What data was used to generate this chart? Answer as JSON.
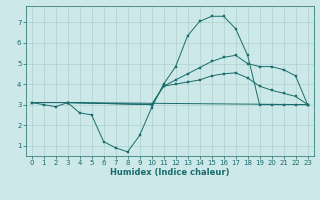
{
  "title": "",
  "xlabel": "Humidex (Indice chaleur)",
  "ylabel": "",
  "bg_color": "#cde8e8",
  "line_color": "#1a6b6b",
  "grid_color": "#afd0d0",
  "xlim": [
    -0.5,
    23.5
  ],
  "ylim": [
    0.5,
    7.8
  ],
  "xticks": [
    0,
    1,
    2,
    3,
    4,
    5,
    6,
    7,
    8,
    9,
    10,
    11,
    12,
    13,
    14,
    15,
    16,
    17,
    18,
    19,
    20,
    21,
    22,
    23
  ],
  "yticks": [
    1,
    2,
    3,
    4,
    5,
    6,
    7
  ],
  "lines": [
    {
      "x": [
        0,
        1,
        2,
        3,
        4,
        5,
        6,
        7,
        8,
        9,
        10,
        11,
        12,
        13,
        14,
        15,
        16,
        17,
        18,
        19,
        20,
        21,
        22,
        23
      ],
      "y": [
        3.1,
        3.0,
        2.9,
        3.1,
        2.6,
        2.5,
        1.2,
        0.9,
        0.7,
        1.5,
        2.85,
        4.0,
        4.85,
        6.35,
        7.05,
        7.3,
        7.3,
        6.7,
        5.4,
        3.0,
        3.0,
        3.0,
        3.0,
        3.0
      ],
      "marker": true
    },
    {
      "x": [
        0,
        3,
        10,
        11,
        12,
        13,
        14,
        15,
        16,
        17,
        18,
        19,
        20,
        21,
        22,
        23
      ],
      "y": [
        3.1,
        3.1,
        3.0,
        3.9,
        4.2,
        4.5,
        4.8,
        5.1,
        5.3,
        5.4,
        5.0,
        4.85,
        4.85,
        4.7,
        4.4,
        3.0
      ],
      "marker": true
    },
    {
      "x": [
        0,
        3,
        23
      ],
      "y": [
        3.1,
        3.1,
        3.0
      ],
      "marker": false
    },
    {
      "x": [
        3,
        10,
        11,
        12,
        13,
        14,
        15,
        16,
        17,
        18,
        19,
        20,
        21,
        22,
        23
      ],
      "y": [
        3.1,
        3.0,
        3.9,
        4.0,
        4.1,
        4.2,
        4.4,
        4.5,
        4.55,
        4.3,
        3.9,
        3.7,
        3.55,
        3.4,
        3.0
      ],
      "marker": true
    }
  ],
  "tick_fontsize": 5.0,
  "xlabel_fontsize": 6.0,
  "lw": 0.7,
  "marker_size": 2.0
}
